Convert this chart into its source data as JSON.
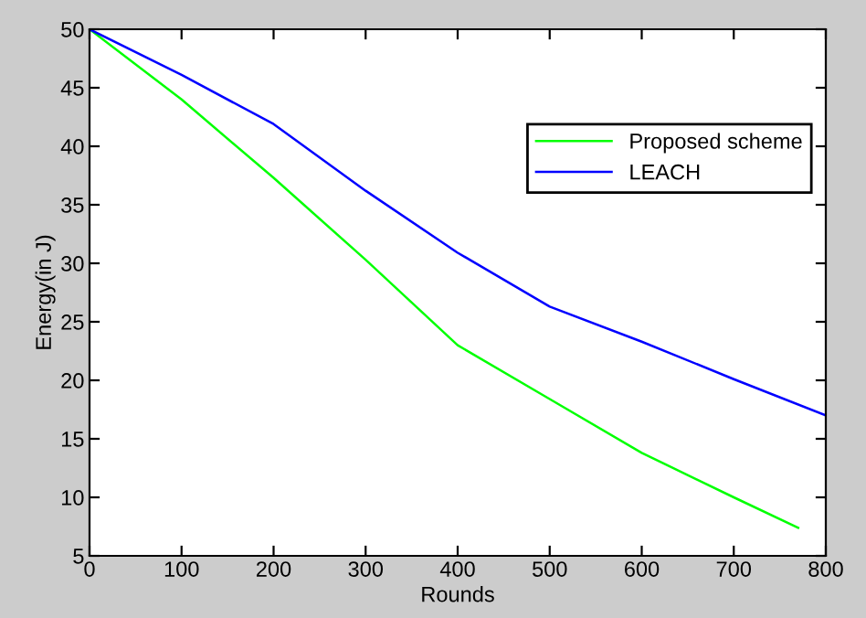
{
  "chart_data": {
    "type": "line",
    "xlabel": "Rounds",
    "ylabel": "Energy(in J)",
    "xlim": [
      0,
      800
    ],
    "xticks": [
      0,
      100,
      200,
      300,
      400,
      500,
      600,
      700,
      800
    ],
    "ylim": [
      5,
      50
    ],
    "yticks": [
      5,
      10,
      15,
      20,
      25,
      30,
      35,
      40,
      45,
      50
    ],
    "grid": false,
    "legend": "top right",
    "marker": "none",
    "line_style": "solid",
    "series": [
      {
        "name": "Proposed scheme",
        "color": "#00ff00",
        "x": [
          0,
          100,
          200,
          300,
          400,
          500,
          600,
          700,
          770
        ],
        "values": [
          50,
          44.0,
          37.3,
          30.3,
          23.0,
          18.4,
          13.8,
          10.0,
          7.4
        ]
      },
      {
        "name": "LEACH",
        "color": "#0000ff",
        "x": [
          0,
          100,
          200,
          300,
          400,
          500,
          600,
          700,
          800
        ],
        "values": [
          50,
          46.1,
          41.9,
          36.2,
          30.9,
          26.3,
          23.3,
          20.1,
          17.0
        ]
      }
    ]
  }
}
